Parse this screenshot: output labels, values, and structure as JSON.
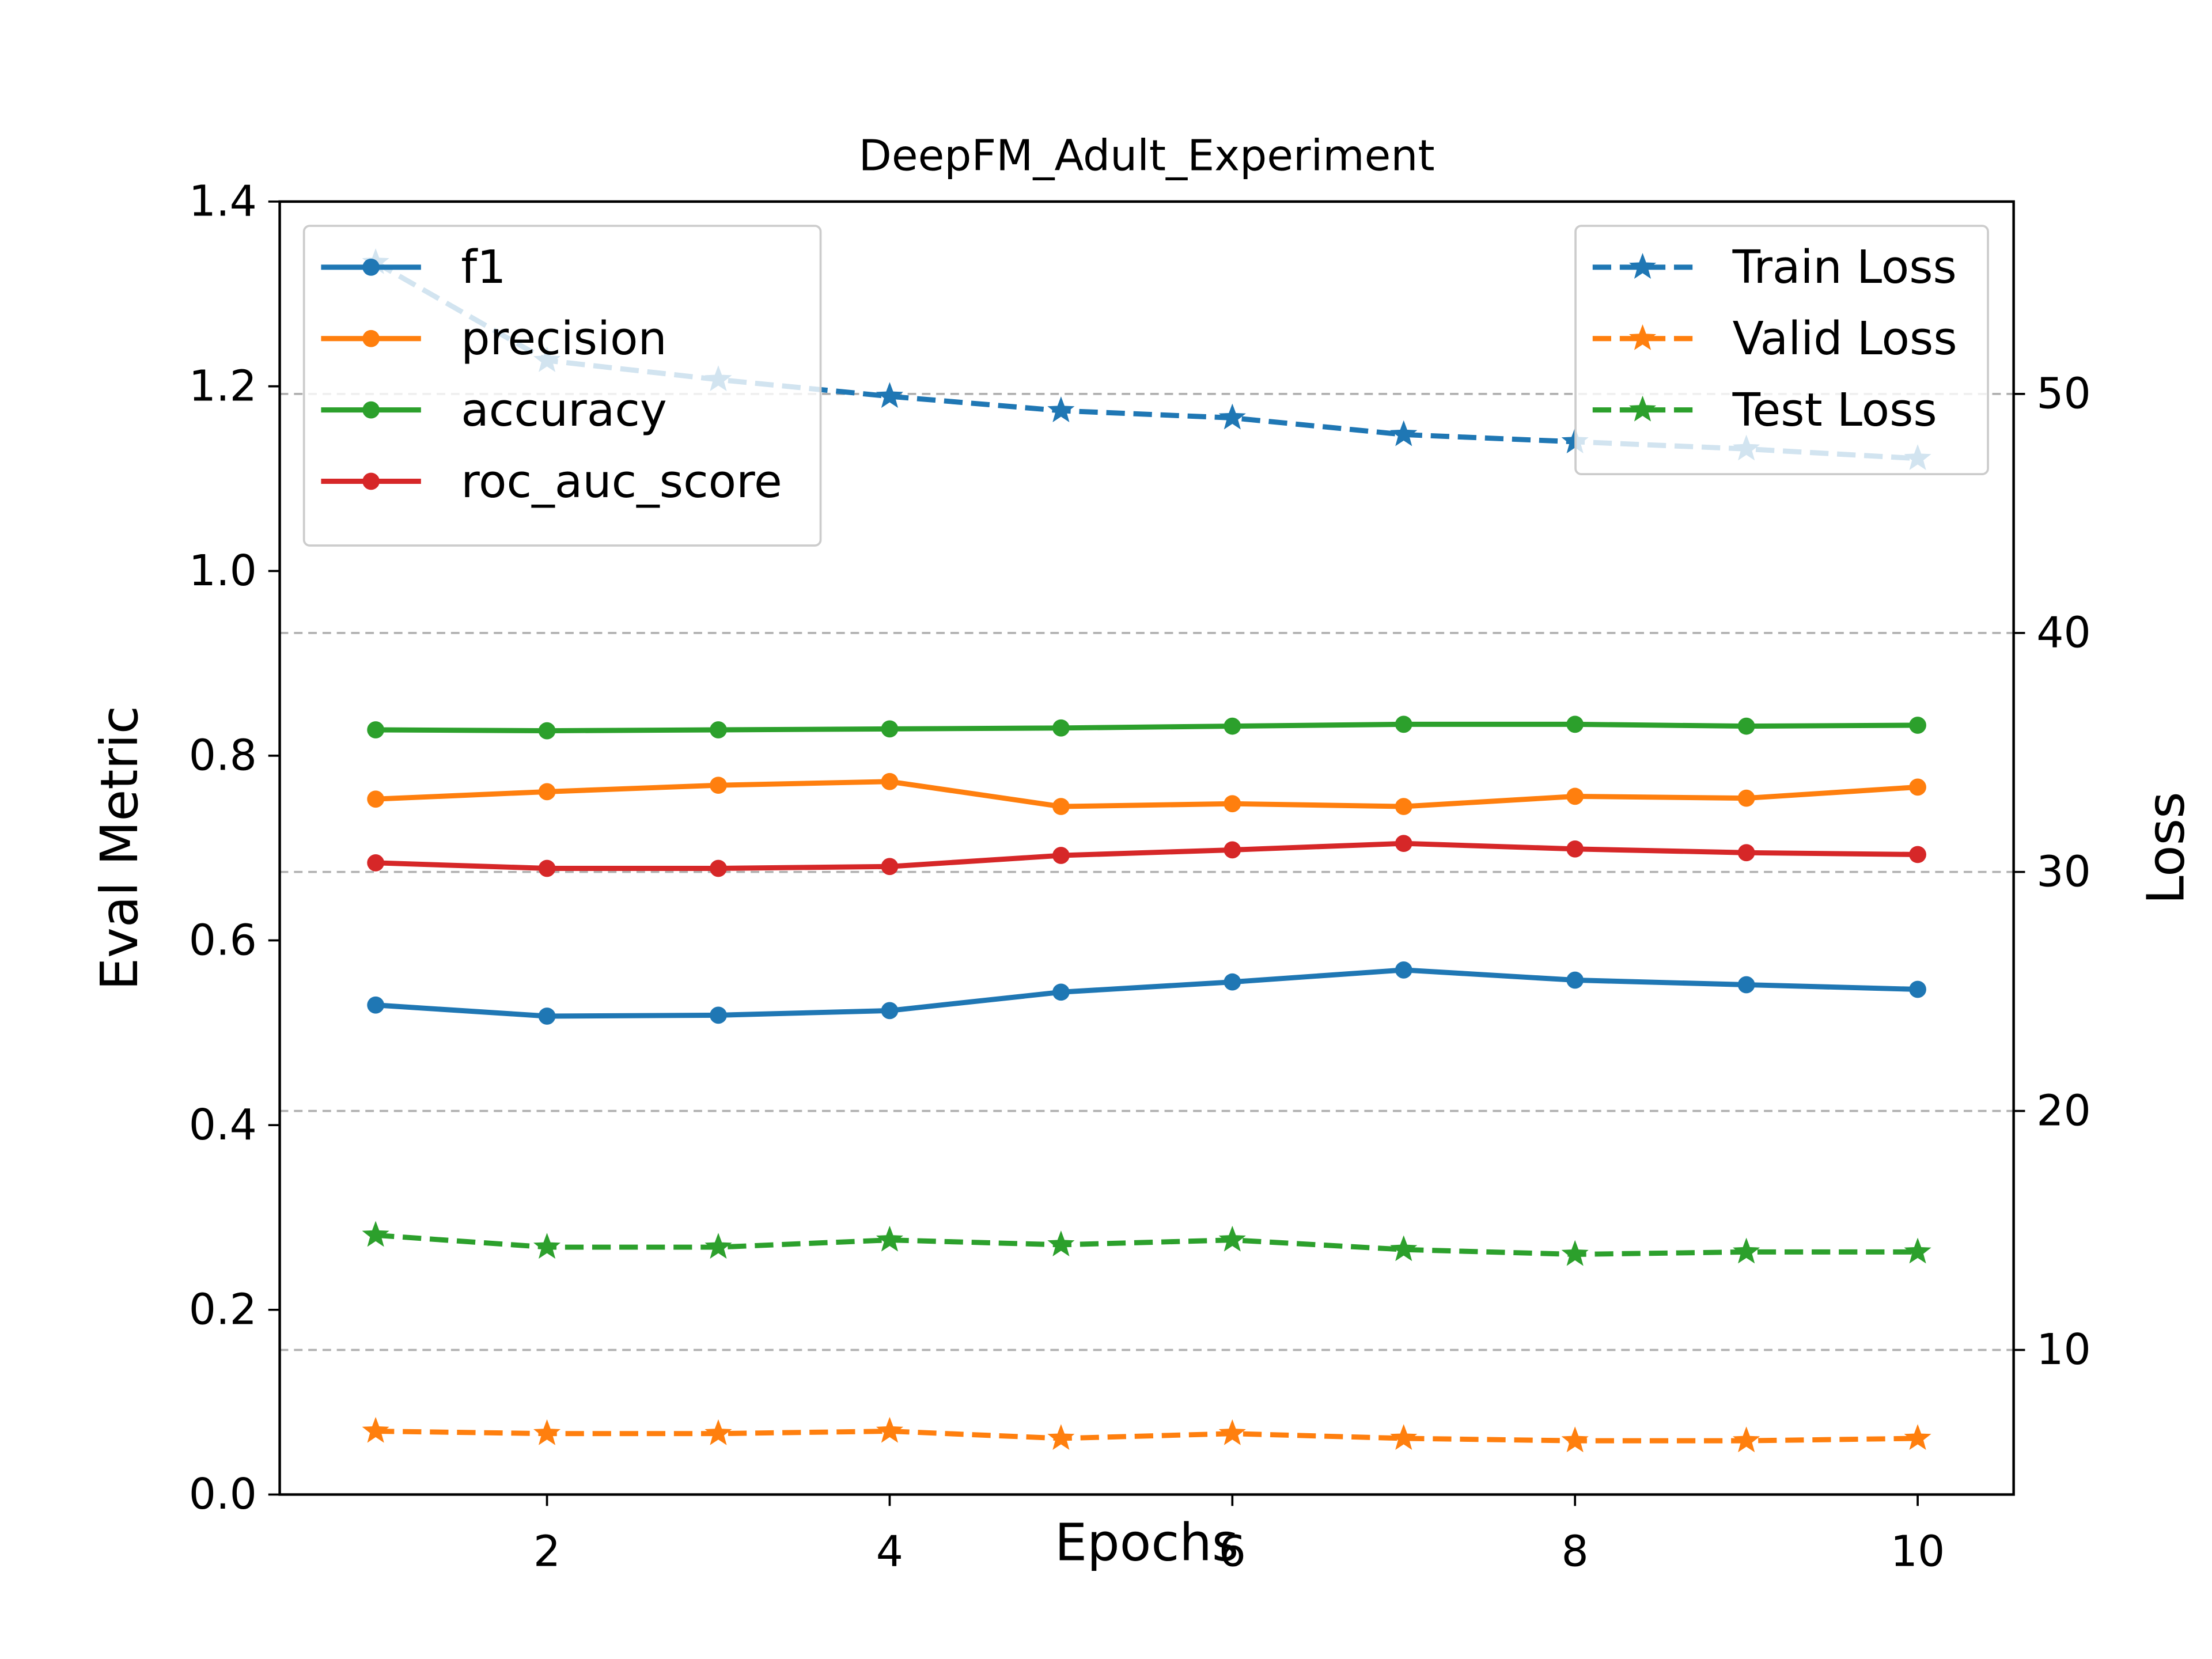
{
  "chart_data": {
    "type": "line",
    "title": "DeepFM_Adult_Experiment",
    "xlabel": "Epochs",
    "ylabel": "Eval Metric",
    "y2label": "Loss",
    "x": [
      1,
      2,
      3,
      4,
      5,
      6,
      7,
      8,
      9,
      10
    ],
    "xlim": [
      0.44,
      10.56
    ],
    "ylim": [
      0.0,
      1.4
    ],
    "y2lim": [
      3.95,
      58.05
    ],
    "xticks": [
      2,
      4,
      6,
      8,
      10
    ],
    "yticks": [
      "0.0",
      "0.2",
      "0.4",
      "0.6",
      "0.8",
      "1.0",
      "1.2",
      "1.4"
    ],
    "y2ticks": [
      10,
      20,
      30,
      40,
      50
    ],
    "grid": "dashed horizontal at loss ticks",
    "legend_left_position": "upper-left",
    "legend_right_position": "upper-right",
    "metric_series": [
      {
        "name": "f1",
        "color": "#1f77b4",
        "values": [
          0.53,
          0.518,
          0.519,
          0.524,
          0.544,
          0.555,
          0.568,
          0.557,
          0.552,
          0.547
        ]
      },
      {
        "name": "precision",
        "color": "#ff7f0e",
        "values": [
          0.753,
          0.761,
          0.768,
          0.772,
          0.745,
          0.748,
          0.745,
          0.756,
          0.754,
          0.766
        ]
      },
      {
        "name": "accuracy",
        "color": "#2ca02c",
        "values": [
          0.828,
          0.827,
          0.828,
          0.829,
          0.83,
          0.832,
          0.834,
          0.834,
          0.832,
          0.833
        ]
      },
      {
        "name": "roc_auc_score",
        "color": "#d62728",
        "values": [
          0.684,
          0.678,
          0.678,
          0.68,
          0.692,
          0.698,
          0.705,
          0.699,
          0.695,
          0.693
        ]
      }
    ],
    "loss_series": [
      {
        "name": "Train Loss",
        "color": "#1f77b4",
        "values": [
          55.5,
          51.4,
          50.6,
          49.9,
          49.3,
          49.0,
          48.3,
          48.0,
          47.7,
          47.3
        ]
      },
      {
        "name": "Valid Loss",
        "color": "#ff7f0e",
        "values": [
          6.6,
          6.5,
          6.5,
          6.6,
          6.3,
          6.5,
          6.3,
          6.2,
          6.2,
          6.3
        ]
      },
      {
        "name": "Test Loss",
        "color": "#2ca02c",
        "values": [
          14.8,
          14.3,
          14.3,
          14.6,
          14.4,
          14.6,
          14.2,
          14.0,
          14.1,
          14.1
        ]
      }
    ]
  }
}
